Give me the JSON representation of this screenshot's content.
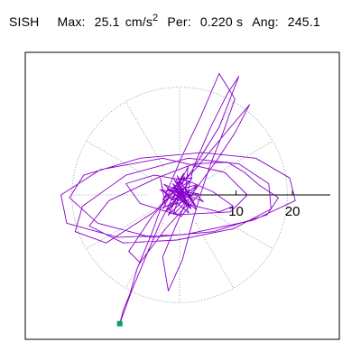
{
  "header": {
    "station": "SISH",
    "max_label": "Max:",
    "max_value": "25.1",
    "max_unit": "cm/s",
    "max_unit_exp": "2",
    "per_label": "Per:",
    "per_value": "0.220 s",
    "ang_label": "Ang:",
    "ang_value": "245.1"
  },
  "chart_data": {
    "type": "line",
    "title": "",
    "axis_tick_labels": [
      "10",
      "20"
    ],
    "axis_ticks": [
      10,
      20
    ],
    "xlim": [
      -25.1,
      25.1
    ],
    "ylim": [
      -25.1,
      25.1
    ],
    "grid": "polar, dotted",
    "max_amplitude": 25.1,
    "peak_angle_deg": 245.1,
    "peak_marker": {
      "x": -10.6,
      "y": -22.8
    },
    "trace_color": "#8800cc",
    "marker_color": "#00a070",
    "series": [
      {
        "x": [
          0.5,
          1.2,
          -0.8,
          2.0,
          -1.5,
          3.1,
          -2.4,
          1.8,
          -3.0,
          0.9,
          -1.1,
          2.6,
          4.2,
          -2.8,
          1.5,
          -0.6,
          2.2,
          -1.9,
          0.3,
          3.4,
          -3.5,
          1.0,
          6.5,
          9.8,
          12.4,
          9.0,
          3.2,
          -4.5,
          -13.0,
          -18.5,
          -17.2,
          -9.5,
          1.5,
          10.5,
          15.8,
          16.2,
          9.5,
          -0.5,
          -10.0,
          -16.0,
          -12.5,
          -4.0,
          2.5,
          8.5,
          11.5,
          14.0,
          17.5,
          15.5,
          6.0,
          -5.0,
          -14.5,
          -19.5,
          -17.0,
          -7.0,
          4.0,
          13.5,
          19.5,
          20.5,
          13.0,
          1.0,
          -11.0,
          -20.0,
          -21.0,
          -14.0,
          -3.0,
          8.0,
          12.0,
          9.0,
          -0.5,
          -7.0,
          -9.5,
          -4.5,
          1.5,
          6.0,
          9.5,
          7.0,
          1.0,
          -3.0,
          -2.0,
          0.5,
          2.5,
          4.0,
          5.5,
          7.5,
          9.8,
          7.0,
          3.8,
          0.5,
          -2.5,
          -5.0,
          -7.5,
          -8.8,
          -10.0,
          -10.6,
          -8.5,
          -6.0,
          -3.5,
          -1.0,
          1.5,
          0.8,
          -1.2,
          2.4,
          -2.2,
          3.0,
          -0.4,
          1.6,
          -2.6,
          0.2,
          2.8,
          -1.0,
          0.6,
          1.2,
          -0.5,
          0.0,
          -2.0,
          3.2,
          -1.3,
          0.7,
          -3.0,
          1.4,
          2.5,
          5.5,
          8.5,
          10.5,
          7.0,
          2.0,
          -5.0,
          -9.0,
          -7.0,
          -2.5,
          2.0,
          1.0,
          -1.5,
          -3.0,
          -3.4,
          -2.5,
          1.5,
          2.0,
          -0.6,
          0.4
        ],
        "y": [
          0.8,
          -1.0,
          1.5,
          -2.2,
          0.6,
          1.8,
          -2.9,
          2.5,
          -0.8,
          3.2,
          -3.5,
          0.4,
          -1.2,
          1.9,
          -2.0,
          2.8,
          3.0,
          -2.6,
          -3.8,
          0.2,
          0.9,
          -1.5,
          6.0,
          11.0,
          16.0,
          12.0,
          5.0,
          -3.0,
          -8.5,
          -6.5,
          -2.0,
          3.5,
          6.5,
          5.5,
          2.0,
          -2.5,
          -6.0,
          -8.0,
          -8.5,
          -5.5,
          -1.0,
          3.0,
          5.5,
          5.8,
          4.0,
          1.8,
          -0.5,
          -3.5,
          -6.5,
          -7.5,
          -5.0,
          -0.5,
          3.5,
          6.5,
          7.5,
          6.5,
          3.0,
          -1.0,
          -4.5,
          -7.0,
          -7.5,
          -5.0,
          0.0,
          4.5,
          6.5,
          4.0,
          0.0,
          -3.0,
          -3.5,
          -1.5,
          2.0,
          3.5,
          2.5,
          0.5,
          -2.0,
          -3.0,
          -1.5,
          -11.0,
          -17.0,
          -11.5,
          -4.0,
          1.0,
          5.5,
          10.5,
          17.0,
          21.5,
          14.0,
          7.0,
          0.0,
          -7.0,
          -13.0,
          -17.5,
          -20.5,
          -22.8,
          -17.0,
          -11.0,
          -5.0,
          0.0,
          5.0,
          -1.5,
          2.0,
          -0.8,
          1.2,
          -2.6,
          3.4,
          -3.2,
          0.4,
          2.2,
          -1.8,
          2.8,
          -0.2,
          -1.4,
          1.0,
          0.6,
          -3.6,
          1.6,
          -0.9,
          3.8,
          -2.4,
          0.3,
          5.0,
          12.0,
          18.0,
          21.0,
          12.0,
          4.0,
          -4.0,
          -10.0,
          -12.0,
          -6.0,
          -1.0,
          1.5,
          -0.8,
          1.0,
          3.0,
          -2.0,
          -1.0,
          -2.5,
          0.5,
          -0.3
        ]
      }
    ]
  }
}
